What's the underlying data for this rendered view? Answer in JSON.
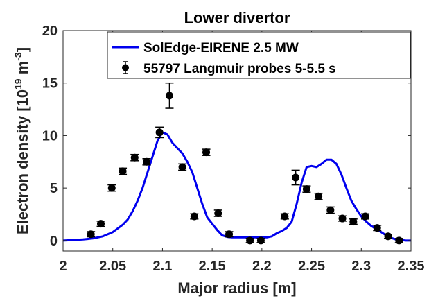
{
  "chart_data": {
    "type": "line",
    "title": "Lower divertor",
    "xlabel": "Major radius [m]",
    "ylabel": {
      "prefix": "Electron density [10",
      "exp1": "19",
      "mid": " m",
      "exp2": "-3",
      "suffix": "]"
    },
    "xlim": [
      2,
      2.35
    ],
    "ylim": [
      -1,
      20
    ],
    "xticks": [
      2,
      2.05,
      2.1,
      2.15,
      2.2,
      2.25,
      2.3,
      2.35
    ],
    "xtick_labels": [
      "2",
      "2.05",
      "2.1",
      "2.15",
      "2.2",
      "2.25",
      "2.3",
      "2.35"
    ],
    "yticks": [
      0,
      5,
      10,
      15,
      20
    ],
    "ytick_labels": [
      "0",
      "5",
      "10",
      "15",
      "20"
    ],
    "grid": false,
    "legend_position": "top-right",
    "colors": {
      "line": "#0000ee",
      "markers": "#000000"
    },
    "series": [
      {
        "name": "SolEdge-EIRENE 2.5 MW",
        "type": "line",
        "x": [
          2.0,
          2.01,
          2.02,
          2.03,
          2.04,
          2.05,
          2.06,
          2.065,
          2.07,
          2.075,
          2.08,
          2.085,
          2.09,
          2.095,
          2.1,
          2.105,
          2.11,
          2.115,
          2.12,
          2.125,
          2.13,
          2.135,
          2.14,
          2.145,
          2.15,
          2.155,
          2.16,
          2.165,
          2.17,
          2.18,
          2.19,
          2.2,
          2.205,
          2.21,
          2.215,
          2.22,
          2.225,
          2.23,
          2.235,
          2.24,
          2.245,
          2.25,
          2.255,
          2.26,
          2.265,
          2.27,
          2.275,
          2.28,
          2.285,
          2.29,
          2.295,
          2.3,
          2.305,
          2.31,
          2.315,
          2.32,
          2.325,
          2.33,
          2.335,
          2.34,
          2.345,
          2.35
        ],
        "y": [
          0.0,
          0.05,
          0.1,
          0.2,
          0.4,
          0.8,
          1.5,
          2.0,
          2.8,
          3.8,
          5.0,
          6.5,
          8.0,
          9.5,
          10.3,
          10.1,
          9.3,
          8.8,
          8.3,
          7.5,
          6.5,
          5.0,
          3.5,
          2.2,
          1.6,
          1.0,
          0.5,
          0.35,
          0.3,
          0.3,
          0.3,
          0.3,
          0.3,
          0.4,
          0.7,
          0.9,
          1.2,
          1.8,
          3.5,
          5.5,
          7.0,
          7.1,
          7.0,
          7.3,
          7.7,
          7.7,
          7.3,
          6.3,
          5.0,
          3.8,
          3.0,
          2.3,
          1.8,
          1.4,
          1.1,
          0.8,
          0.5,
          0.25,
          0.1,
          0.05,
          0.0,
          0.0
        ]
      },
      {
        "name": "55797 Langmuir probes 5-5.5 s",
        "type": "errorbar",
        "points": [
          {
            "x": 2.028,
            "y": 0.6,
            "err": 0.25
          },
          {
            "x": 2.038,
            "y": 1.6,
            "err": 0.25
          },
          {
            "x": 2.049,
            "y": 5.0,
            "err": 0.3
          },
          {
            "x": 2.06,
            "y": 6.6,
            "err": 0.3
          },
          {
            "x": 2.072,
            "y": 7.9,
            "err": 0.3
          },
          {
            "x": 2.084,
            "y": 7.5,
            "err": 0.3
          },
          {
            "x": 2.097,
            "y": 10.3,
            "err": 0.5
          },
          {
            "x": 2.107,
            "y": 13.8,
            "err": 1.2
          },
          {
            "x": 2.12,
            "y": 7.0,
            "err": 0.3
          },
          {
            "x": 2.132,
            "y": 2.3,
            "err": 0.25
          },
          {
            "x": 2.144,
            "y": 8.4,
            "err": 0.3
          },
          {
            "x": 2.156,
            "y": 2.6,
            "err": 0.3
          },
          {
            "x": 2.167,
            "y": 0.6,
            "err": 0.25
          },
          {
            "x": 2.188,
            "y": 0.0,
            "err": 0.2
          },
          {
            "x": 2.199,
            "y": 0.0,
            "err": 0.2
          },
          {
            "x": 2.223,
            "y": 2.3,
            "err": 0.25
          },
          {
            "x": 2.234,
            "y": 6.0,
            "err": 0.7
          },
          {
            "x": 2.245,
            "y": 4.9,
            "err": 0.3
          },
          {
            "x": 2.257,
            "y": 4.2,
            "err": 0.3
          },
          {
            "x": 2.269,
            "y": 2.9,
            "err": 0.3
          },
          {
            "x": 2.281,
            "y": 2.1,
            "err": 0.25
          },
          {
            "x": 2.292,
            "y": 1.8,
            "err": 0.25
          },
          {
            "x": 2.304,
            "y": 2.3,
            "err": 0.25
          },
          {
            "x": 2.316,
            "y": 1.2,
            "err": 0.25
          },
          {
            "x": 2.327,
            "y": 0.4,
            "err": 0.2
          },
          {
            "x": 2.338,
            "y": 0.0,
            "err": 0.2
          }
        ]
      }
    ]
  }
}
